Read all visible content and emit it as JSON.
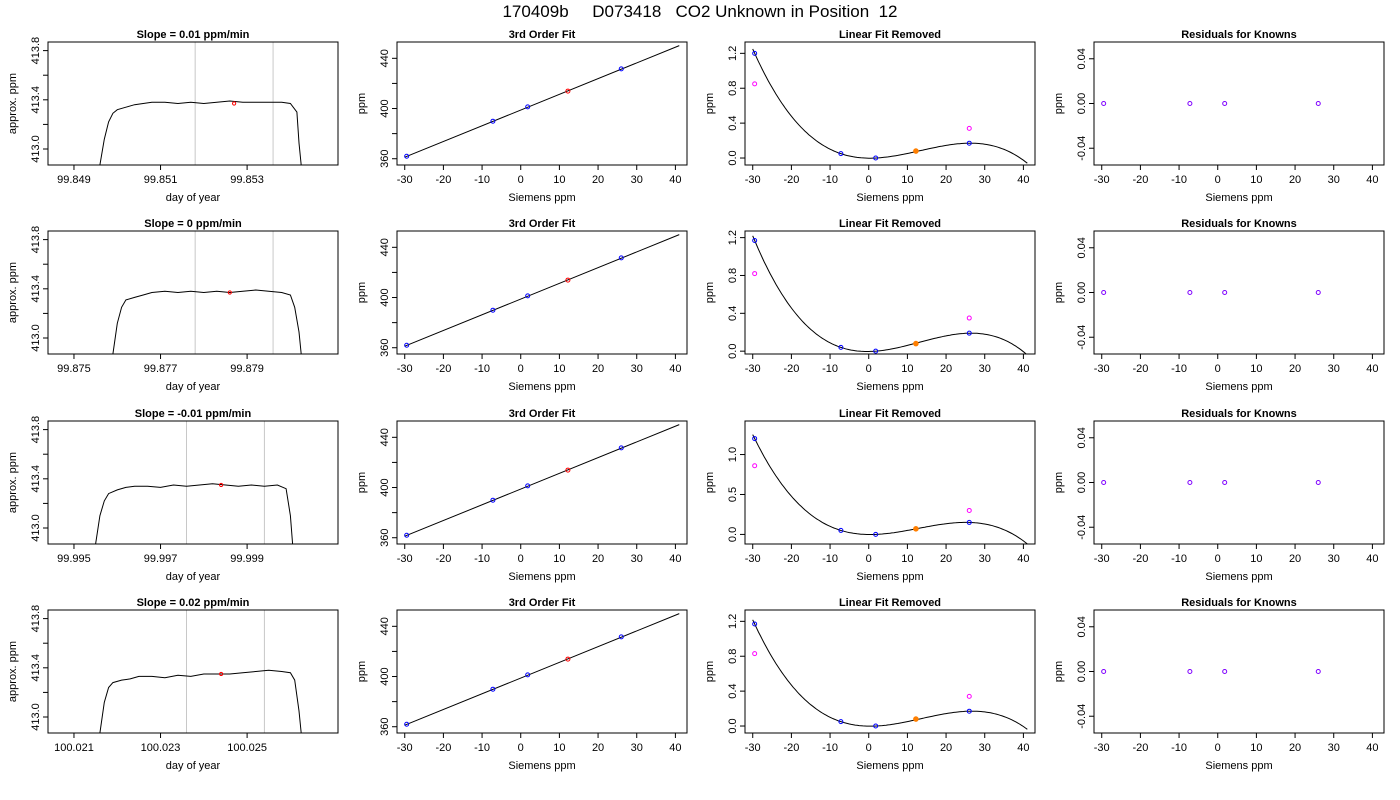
{
  "page_title": "170409b     D073418   CO2 Unknown in Position  12",
  "colors": {
    "trace": "#000000",
    "vline": "#c8c8c8",
    "known_point": "#0000ff",
    "unknown_point": "#ff0000",
    "unknown_fit_point": "#ff7f00",
    "raw_known_point": "#ff00ff",
    "purple_point": "#7f00ff"
  },
  "chart_data": [
    {
      "panel": "timeseries",
      "type": "line",
      "title": "Slope =  0.01  ppm/min",
      "xlabel": "day of year",
      "ylabel": "approx. ppm",
      "xlim": [
        99.8484,
        99.8551
      ],
      "ylim": [
        412.87,
        413.87
      ],
      "xticks": [
        99.849,
        99.851,
        99.853
      ],
      "xtick_labels": [
        "99.849",
        "99.851",
        "99.853"
      ],
      "yticks": [
        413.0,
        413.2,
        413.4,
        413.6,
        413.8
      ],
      "ytick_labels": [
        "413.0",
        "",
        "413.4",
        "",
        "413.8"
      ],
      "vlines": [
        99.8518,
        99.8536
      ],
      "trace_x": [
        99.8496,
        99.8497,
        99.8498,
        99.8499,
        99.85,
        99.8502,
        99.8504,
        99.8506,
        99.8508,
        99.8511,
        99.8514,
        99.8517,
        99.852,
        99.8523,
        99.8526,
        99.8529,
        99.8532,
        99.8535,
        99.8538,
        99.854,
        99.85415,
        99.8542,
        99.85425
      ],
      "trace_y": [
        412.87,
        413.08,
        413.22,
        413.29,
        413.32,
        413.34,
        413.36,
        413.37,
        413.38,
        413.38,
        413.37,
        413.38,
        413.37,
        413.38,
        413.39,
        413.38,
        413.38,
        413.38,
        413.38,
        413.37,
        413.3,
        413.05,
        412.87
      ],
      "marker": {
        "x": 99.8527,
        "y": 413.37
      }
    },
    {
      "panel": "fit",
      "type": "scatter",
      "title": "3rd Order Fit",
      "xlabel": "Siemens ppm",
      "ylabel": "ppm",
      "xlim": [
        -32,
        43
      ],
      "ylim": [
        355,
        453
      ],
      "xticks": [
        -30,
        -20,
        -10,
        0,
        10,
        20,
        30,
        40
      ],
      "xtick_labels": [
        "-30",
        "-20",
        "-10",
        "0",
        "10",
        "20",
        "30",
        "40"
      ],
      "yticks": [
        360,
        380,
        400,
        420,
        440
      ],
      "ytick_labels": [
        "360",
        "",
        "400",
        "",
        "440"
      ],
      "line": {
        "x": [
          -30,
          41
        ],
        "y": [
          361.2,
          450.1
        ]
      },
      "knowns": {
        "x": [
          -29.5,
          -7.2,
          1.8,
          26.0
        ],
        "y": [
          362.0,
          389.9,
          401.3,
          431.6
        ]
      },
      "unknown": {
        "x": 12.2,
        "y": 413.9
      }
    },
    {
      "panel": "linfit",
      "type": "scatter",
      "title": "Linear Fit Removed",
      "xlabel": "Siemens ppm",
      "ylabel": "ppm",
      "xlim": [
        -32,
        43
      ],
      "ylim": [
        -0.08,
        1.33
      ],
      "xticks": [
        -30,
        -20,
        -10,
        0,
        10,
        20,
        30,
        40
      ],
      "xtick_labels": [
        "-30",
        "-20",
        "-10",
        "0",
        "10",
        "20",
        "30",
        "40"
      ],
      "yticks": [
        0.0,
        0.4,
        0.8,
        1.2
      ],
      "ytick_labels": [
        "0.0",
        "0.4",
        "0.8",
        "1.2"
      ],
      "curve": {
        "a": 0.001002,
        "b": -0.000286,
        "c": -0.00207,
        "d": 0.0
      },
      "knowns": {
        "x": [
          -29.5,
          -7.2,
          1.8,
          26.0
        ],
        "y": [
          1.2,
          0.05,
          0.0,
          0.17
        ]
      },
      "raw_knowns": {
        "x": [
          -29.5,
          26.0
        ],
        "y": [
          0.85,
          0.34
        ]
      },
      "unknown": {
        "x": 12.2,
        "y": 0.08
      }
    },
    {
      "panel": "residuals",
      "type": "scatter",
      "title": "Residuals for Knowns",
      "xlabel": "Siemens ppm",
      "ylabel": "ppm",
      "xlim": [
        -32,
        43
      ],
      "ylim": [
        -0.055,
        0.055
      ],
      "xticks": [
        -30,
        -20,
        -10,
        0,
        10,
        20,
        30,
        40
      ],
      "xtick_labels": [
        "-30",
        "-20",
        "-10",
        "0",
        "10",
        "20",
        "30",
        "40"
      ],
      "yticks": [
        -0.04,
        0.0,
        0.04
      ],
      "ytick_labels": [
        "-0.04",
        "0.00",
        "0.04"
      ],
      "points": {
        "x": [
          -29.5,
          -7.2,
          1.8,
          26.0
        ],
        "y": [
          0,
          0,
          0,
          0
        ]
      }
    },
    {
      "panel": "timeseries",
      "type": "line",
      "title": "Slope =  0  ppm/min",
      "xlabel": "day of year",
      "ylabel": "approx. ppm",
      "xlim": [
        99.8744,
        99.8811
      ],
      "ylim": [
        412.87,
        413.87
      ],
      "xticks": [
        99.875,
        99.877,
        99.879
      ],
      "xtick_labels": [
        "99.875",
        "99.877",
        "99.879"
      ],
      "yticks": [
        413.0,
        413.2,
        413.4,
        413.6,
        413.8
      ],
      "ytick_labels": [
        "413.0",
        "",
        "413.4",
        "",
        "413.8"
      ],
      "vlines": [
        99.8778,
        99.8796
      ],
      "trace_x": [
        99.8759,
        99.876,
        99.8761,
        99.8762,
        99.8764,
        99.8766,
        99.8768,
        99.8771,
        99.8774,
        99.8777,
        99.878,
        99.8783,
        99.8786,
        99.8789,
        99.8792,
        99.8795,
        99.8798,
        99.88,
        99.8801,
        99.8802,
        99.88025
      ],
      "trace_y": [
        412.87,
        413.12,
        413.25,
        413.31,
        413.33,
        413.35,
        413.37,
        413.38,
        413.37,
        413.38,
        413.37,
        413.38,
        413.37,
        413.38,
        413.39,
        413.38,
        413.37,
        413.35,
        413.25,
        413.05,
        412.87
      ],
      "marker": {
        "x": 99.8786,
        "y": 413.37
      }
    },
    {
      "panel": "fit",
      "type": "scatter",
      "title": "3rd Order Fit",
      "xlabel": "Siemens ppm",
      "ylabel": "ppm",
      "xlim": [
        -32,
        43
      ],
      "ylim": [
        355,
        453
      ],
      "xticks": [
        -30,
        -20,
        -10,
        0,
        10,
        20,
        30,
        40
      ],
      "xtick_labels": [
        "-30",
        "-20",
        "-10",
        "0",
        "10",
        "20",
        "30",
        "40"
      ],
      "yticks": [
        360,
        380,
        400,
        420,
        440
      ],
      "ytick_labels": [
        "360",
        "",
        "400",
        "",
        "440"
      ],
      "line": {
        "x": [
          -30,
          41
        ],
        "y": [
          361.2,
          450.1
        ]
      },
      "knowns": {
        "x": [
          -29.5,
          -7.2,
          1.8,
          26.0
        ],
        "y": [
          362.0,
          389.9,
          401.3,
          431.6
        ]
      },
      "unknown": {
        "x": 12.2,
        "y": 413.9
      }
    },
    {
      "panel": "linfit",
      "type": "scatter",
      "title": "Linear Fit Removed",
      "xlabel": "Siemens ppm",
      "ylabel": "ppm",
      "xlim": [
        -32,
        43
      ],
      "ylim": [
        -0.03,
        1.27
      ],
      "xticks": [
        -30,
        -20,
        -10,
        0,
        10,
        20,
        30,
        40
      ],
      "xtick_labels": [
        "-30",
        "-20",
        "-10",
        "0",
        "10",
        "20",
        "30",
        "40"
      ],
      "yticks": [
        0.0,
        0.4,
        0.8,
        1.2
      ],
      "ytick_labels": [
        "0.0",
        "0.4",
        "0.8",
        "1.2"
      ],
      "curve": {
        "a": 0.001002,
        "b": -0.000286,
        "c": -0.00207,
        "d": 0.0
      },
      "knowns": {
        "x": [
          -29.5,
          -7.2,
          1.8,
          26.0
        ],
        "y": [
          1.17,
          0.04,
          0.0,
          0.19
        ]
      },
      "raw_knowns": {
        "x": [
          -29.5,
          26.0
        ],
        "y": [
          0.82,
          0.35
        ]
      },
      "unknown": {
        "x": 12.2,
        "y": 0.08
      }
    },
    {
      "panel": "residuals",
      "type": "scatter",
      "title": "Residuals for Knowns",
      "xlabel": "Siemens ppm",
      "ylabel": "ppm",
      "xlim": [
        -32,
        43
      ],
      "ylim": [
        -0.055,
        0.055
      ],
      "xticks": [
        -30,
        -20,
        -10,
        0,
        10,
        20,
        30,
        40
      ],
      "xtick_labels": [
        "-30",
        "-20",
        "-10",
        "0",
        "10",
        "20",
        "30",
        "40"
      ],
      "yticks": [
        -0.04,
        0.0,
        0.04
      ],
      "ytick_labels": [
        "-0.04",
        "0.00",
        "0.04"
      ],
      "points": {
        "x": [
          -29.5,
          -7.2,
          1.8,
          26.0
        ],
        "y": [
          0,
          0,
          0,
          0
        ]
      }
    },
    {
      "panel": "timeseries",
      "type": "line",
      "title": "Slope =  -0.01  ppm/min",
      "xlabel": "day of year",
      "ylabel": "approx. ppm",
      "xlim": [
        99.9944,
        100.0011
      ],
      "ylim": [
        412.87,
        413.87
      ],
      "xticks": [
        99.995,
        99.997,
        99.999
      ],
      "xtick_labels": [
        "99.995",
        "99.997",
        "99.999"
      ],
      "yticks": [
        413.0,
        413.2,
        413.4,
        413.6,
        413.8
      ],
      "ytick_labels": [
        "413.0",
        "",
        "413.4",
        "",
        "413.8"
      ],
      "vlines": [
        99.9976,
        99.9994
      ],
      "trace_x": [
        99.9955,
        99.9956,
        99.9957,
        99.9958,
        99.996,
        99.9962,
        99.9964,
        99.9967,
        99.997,
        99.9973,
        99.9976,
        99.9979,
        99.9982,
        99.9985,
        99.9988,
        99.9991,
        99.9994,
        99.9997,
        99.9999,
        100.0,
        100.00005
      ],
      "trace_y": [
        412.87,
        413.1,
        413.22,
        413.28,
        413.31,
        413.33,
        413.34,
        413.34,
        413.33,
        413.35,
        413.34,
        413.35,
        413.36,
        413.35,
        413.34,
        413.35,
        413.34,
        413.35,
        413.32,
        413.1,
        412.87
      ],
      "marker": {
        "x": 99.9984,
        "y": 413.35
      }
    },
    {
      "panel": "fit",
      "type": "scatter",
      "title": "3rd Order Fit",
      "xlabel": "Siemens ppm",
      "ylabel": "ppm",
      "xlim": [
        -32,
        43
      ],
      "ylim": [
        355,
        453
      ],
      "xticks": [
        -30,
        -20,
        -10,
        0,
        10,
        20,
        30,
        40
      ],
      "xtick_labels": [
        "-30",
        "-20",
        "-10",
        "0",
        "10",
        "20",
        "30",
        "40"
      ],
      "yticks": [
        360,
        380,
        400,
        420,
        440
      ],
      "ytick_labels": [
        "360",
        "",
        "400",
        "",
        "440"
      ],
      "line": {
        "x": [
          -30,
          41
        ],
        "y": [
          361.2,
          450.1
        ]
      },
      "knowns": {
        "x": [
          -29.5,
          -7.2,
          1.8,
          26.0
        ],
        "y": [
          362.0,
          389.9,
          401.3,
          431.6
        ]
      },
      "unknown": {
        "x": 12.2,
        "y": 413.9
      }
    },
    {
      "panel": "linfit",
      "type": "scatter",
      "title": "Linear Fit Removed",
      "xlabel": "Siemens ppm",
      "ylabel": "ppm",
      "xlim": [
        -32,
        43
      ],
      "ylim": [
        -0.12,
        1.42
      ],
      "xticks": [
        -30,
        -20,
        -10,
        0,
        10,
        20,
        30,
        40
      ],
      "xtick_labels": [
        "-30",
        "-20",
        "-10",
        "0",
        "10",
        "20",
        "30",
        "40"
      ],
      "yticks": [
        0.0,
        0.5,
        1.0
      ],
      "ytick_labels": [
        "0.0",
        "0.5",
        "1.0"
      ],
      "curve": {
        "a": 0.001002,
        "b": -0.000286,
        "c": -0.00207,
        "d": 0.0
      },
      "knowns": {
        "x": [
          -29.5,
          -7.2,
          1.8,
          26.0
        ],
        "y": [
          1.2,
          0.05,
          0.0,
          0.15
        ]
      },
      "raw_knowns": {
        "x": [
          -29.5,
          26.0
        ],
        "y": [
          0.86,
          0.3
        ]
      },
      "unknown": {
        "x": 12.2,
        "y": 0.07
      }
    },
    {
      "panel": "residuals",
      "type": "scatter",
      "title": "Residuals for Knowns",
      "xlabel": "Siemens ppm",
      "ylabel": "ppm",
      "xlim": [
        -32,
        43
      ],
      "ylim": [
        -0.055,
        0.055
      ],
      "xticks": [
        -30,
        -20,
        -10,
        0,
        10,
        20,
        30,
        40
      ],
      "xtick_labels": [
        "-30",
        "-20",
        "-10",
        "0",
        "10",
        "20",
        "30",
        "40"
      ],
      "yticks": [
        -0.04,
        0.0,
        0.04
      ],
      "ytick_labels": [
        "-0.04",
        "0.00",
        "0.04"
      ],
      "points": {
        "x": [
          -29.5,
          -7.2,
          1.8,
          26.0
        ],
        "y": [
          0,
          0,
          0,
          0
        ]
      }
    },
    {
      "panel": "timeseries",
      "type": "line",
      "title": "Slope =  0.02  ppm/min",
      "xlabel": "day of year",
      "ylabel": "approx. ppm",
      "xlim": [
        100.0204,
        100.0271
      ],
      "ylim": [
        412.87,
        413.87
      ],
      "xticks": [
        100.021,
        100.023,
        100.025
      ],
      "xtick_labels": [
        "100.021",
        "100.023",
        "100.025"
      ],
      "yticks": [
        413.0,
        413.2,
        413.4,
        413.6,
        413.8
      ],
      "ytick_labels": [
        "413.0",
        "",
        "413.4",
        "",
        "413.8"
      ],
      "vlines": [
        100.0236,
        100.0254
      ],
      "trace_x": [
        100.0216,
        100.0217,
        100.0218,
        100.0219,
        100.0221,
        100.0223,
        100.0225,
        100.0228,
        100.0231,
        100.0234,
        100.0237,
        100.024,
        100.0243,
        100.0246,
        100.0249,
        100.0252,
        100.0255,
        100.0258,
        100.026,
        100.0261,
        100.0262,
        100.02625
      ],
      "trace_y": [
        412.87,
        413.12,
        413.24,
        413.28,
        413.3,
        413.31,
        413.33,
        413.33,
        413.32,
        413.34,
        413.33,
        413.35,
        413.35,
        413.35,
        413.36,
        413.37,
        413.38,
        413.37,
        413.36,
        413.3,
        413.05,
        412.87
      ],
      "marker": {
        "x": 100.0244,
        "y": 413.35
      }
    },
    {
      "panel": "fit",
      "type": "scatter",
      "title": "3rd Order Fit",
      "xlabel": "Siemens ppm",
      "ylabel": "ppm",
      "xlim": [
        -32,
        43
      ],
      "ylim": [
        355,
        453
      ],
      "xticks": [
        -30,
        -20,
        -10,
        0,
        10,
        20,
        30,
        40
      ],
      "xtick_labels": [
        "-30",
        "-20",
        "-10",
        "0",
        "10",
        "20",
        "30",
        "40"
      ],
      "yticks": [
        360,
        380,
        400,
        420,
        440
      ],
      "ytick_labels": [
        "360",
        "",
        "400",
        "",
        "440"
      ],
      "line": {
        "x": [
          -30,
          41
        ],
        "y": [
          361.2,
          450.1
        ]
      },
      "knowns": {
        "x": [
          -29.5,
          -7.2,
          1.8,
          26.0
        ],
        "y": [
          362.0,
          389.9,
          401.3,
          431.6
        ]
      },
      "unknown": {
        "x": 12.2,
        "y": 413.9
      }
    },
    {
      "panel": "linfit",
      "type": "scatter",
      "title": "Linear Fit Removed",
      "xlabel": "Siemens ppm",
      "ylabel": "ppm",
      "xlim": [
        -32,
        43
      ],
      "ylim": [
        -0.08,
        1.33
      ],
      "xticks": [
        -30,
        -20,
        -10,
        0,
        10,
        20,
        30,
        40
      ],
      "xtick_labels": [
        "-30",
        "-20",
        "-10",
        "0",
        "10",
        "20",
        "30",
        "40"
      ],
      "yticks": [
        0.0,
        0.4,
        0.8,
        1.2
      ],
      "ytick_labels": [
        "0.0",
        "0.4",
        "0.8",
        "1.2"
      ],
      "curve": {
        "a": 0.001002,
        "b": -0.000286,
        "c": -0.00207,
        "d": 0.0
      },
      "knowns": {
        "x": [
          -29.5,
          -7.2,
          1.8,
          26.0
        ],
        "y": [
          1.17,
          0.05,
          0.0,
          0.17
        ]
      },
      "raw_knowns": {
        "x": [
          -29.5,
          26.0
        ],
        "y": [
          0.83,
          0.34
        ]
      },
      "unknown": {
        "x": 12.2,
        "y": 0.08
      }
    },
    {
      "panel": "residuals",
      "type": "scatter",
      "title": "Residuals for Knowns",
      "xlabel": "Siemens ppm",
      "ylabel": "ppm",
      "xlim": [
        -32,
        43
      ],
      "ylim": [
        -0.055,
        0.055
      ],
      "xticks": [
        -30,
        -20,
        -10,
        0,
        10,
        20,
        30,
        40
      ],
      "xtick_labels": [
        "-30",
        "-20",
        "-10",
        "0",
        "10",
        "20",
        "30",
        "40"
      ],
      "yticks": [
        -0.04,
        0.0,
        0.04
      ],
      "ytick_labels": [
        "-0.04",
        "0.00",
        "0.04"
      ],
      "points": {
        "x": [
          -29.5,
          -7.2,
          1.8,
          26.0
        ],
        "y": [
          0,
          0,
          0,
          0
        ]
      }
    }
  ]
}
